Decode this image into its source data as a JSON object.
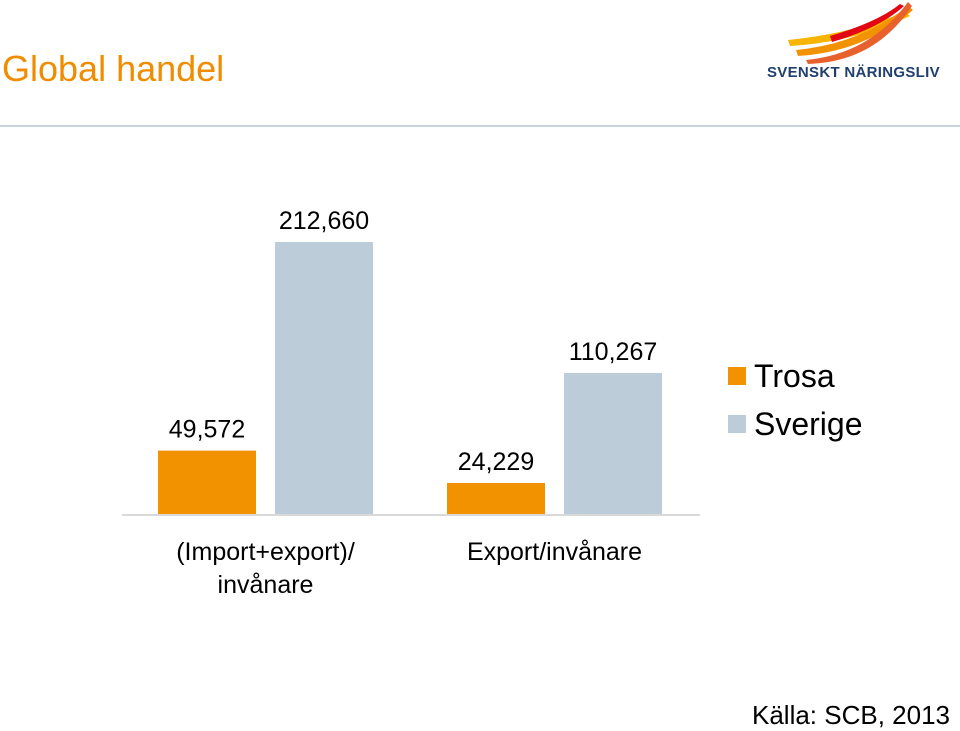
{
  "header": {
    "title": "Global handel",
    "logo_text": "SVENSKT NÄRINGSLIV"
  },
  "colors": {
    "title": "#F08C00",
    "logo_text": "#1F3F6F",
    "divider": "#C9D3DC",
    "axis": "#D9D9D9",
    "trosa": "#F39200",
    "sverige": "#BDCCD9"
  },
  "chart_data": {
    "type": "bar",
    "categories": [
      "(Import+export)/\ninvånare",
      "Export/invånare"
    ],
    "series": [
      {
        "name": "Trosa",
        "values": [
          49572,
          24229
        ],
        "labels": [
          "49,572",
          "24,229"
        ],
        "color": "#F39200"
      },
      {
        "name": "Sverige",
        "values": [
          212660,
          110267
        ],
        "labels": [
          "212,660",
          "110,267"
        ],
        "color": "#BDCCD9"
      }
    ],
    "ylim": [
      0,
      212660
    ],
    "grid": false,
    "legend": "right"
  },
  "legend": {
    "items": [
      {
        "label": "Trosa",
        "color": "#F39200"
      },
      {
        "label": "Sverige",
        "color": "#BDCCD9"
      }
    ]
  },
  "footer": {
    "source": "Källa: SCB, 2013"
  }
}
